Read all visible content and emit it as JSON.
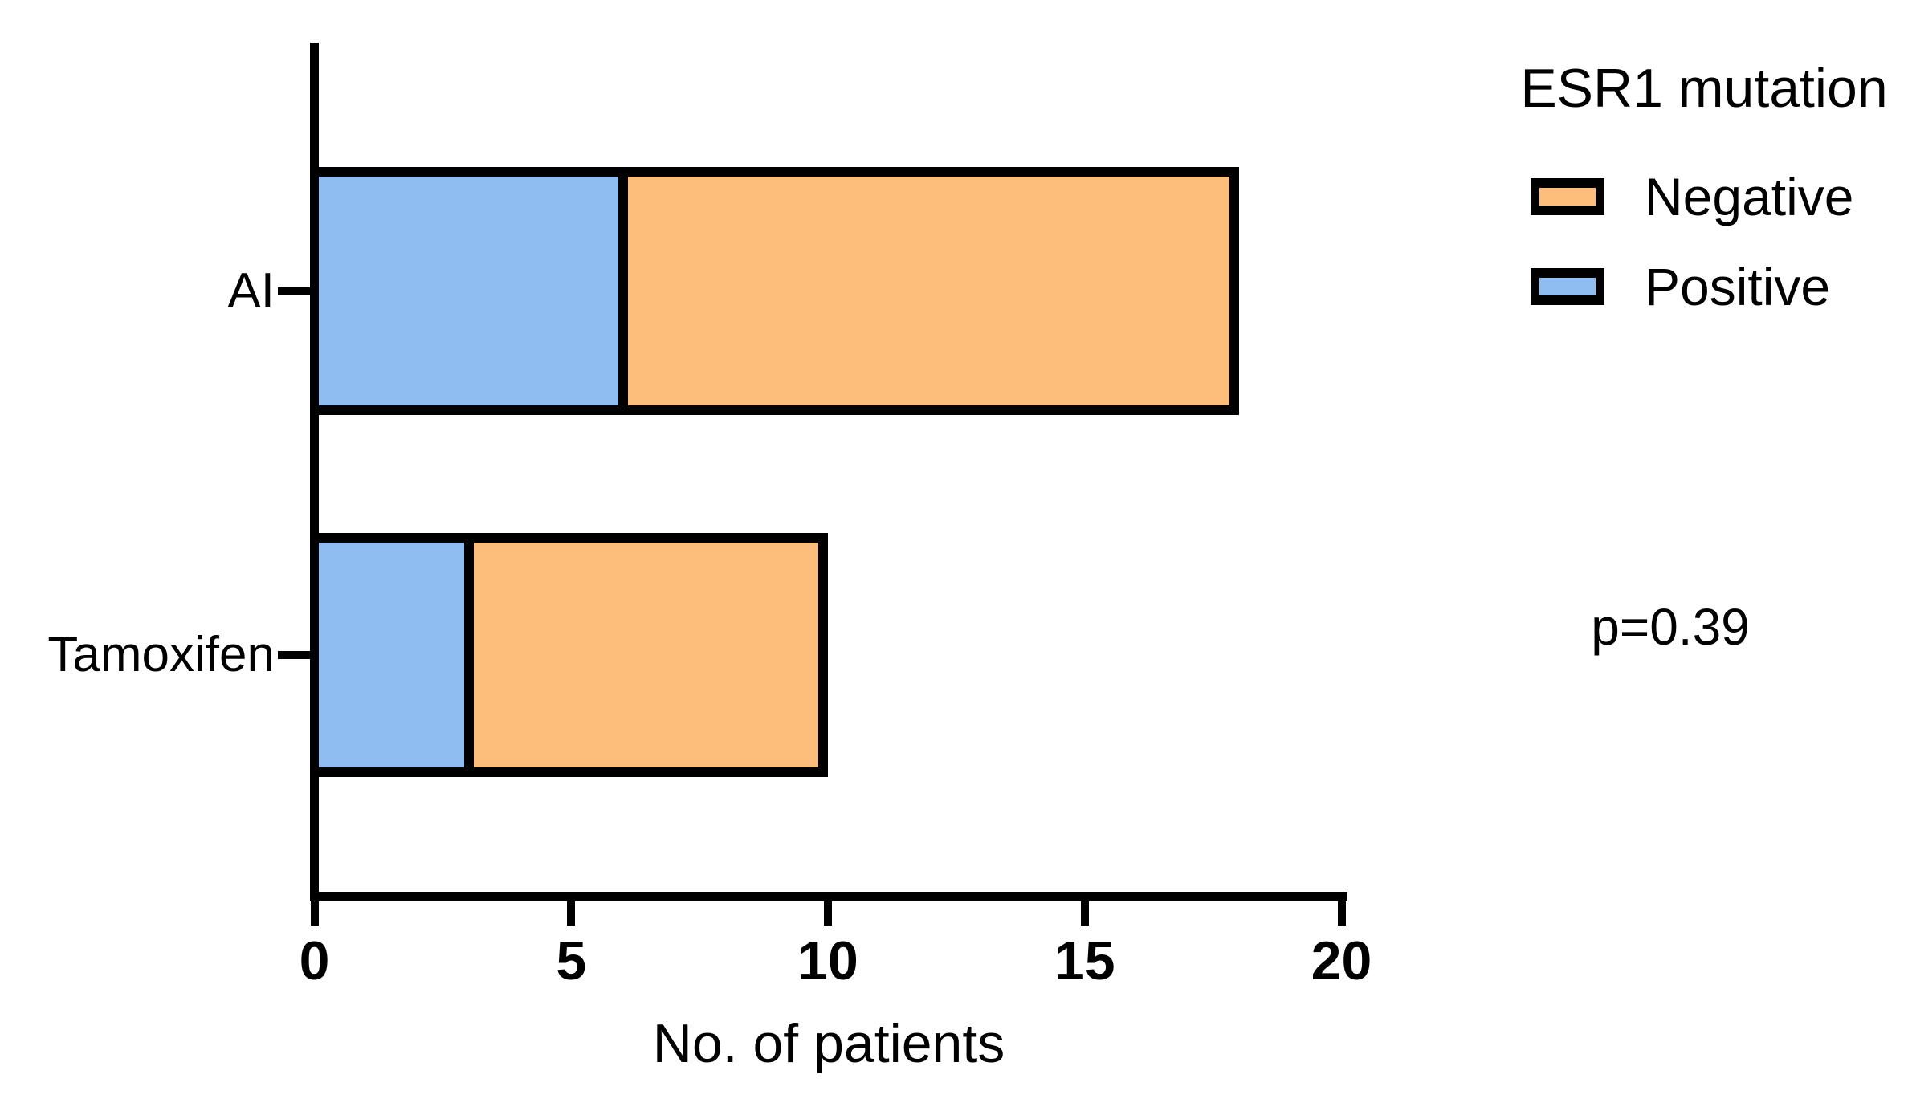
{
  "figure": {
    "background": "#ffffff",
    "text_color": "#000000",
    "axis_color": "#000000"
  },
  "chart_data": {
    "type": "bar",
    "orientation": "horizontal",
    "stacked": true,
    "title": "",
    "xlabel": "No. of patients",
    "ylabel": "",
    "categories": [
      "AI",
      "Tamoxifen"
    ],
    "series": [
      {
        "name": "Positive",
        "color": "#8FBDF2",
        "values": [
          6,
          3
        ]
      },
      {
        "name": "Negative",
        "color": "#FDBE7C",
        "values": [
          12,
          7
        ]
      }
    ],
    "totals": [
      18,
      10
    ],
    "xlim": [
      0,
      20
    ],
    "xticks": [
      0,
      5,
      10,
      15,
      20
    ],
    "bar_outline_color": "#000000",
    "grid": false,
    "legend": {
      "title": "ESR1 mutation",
      "position": "top-right",
      "entries": [
        {
          "label": "Negative",
          "color": "#FDBE7C"
        },
        {
          "label": "Positive",
          "color": "#8FBDF2"
        }
      ]
    },
    "annotation": {
      "text": "p=0.39"
    }
  }
}
